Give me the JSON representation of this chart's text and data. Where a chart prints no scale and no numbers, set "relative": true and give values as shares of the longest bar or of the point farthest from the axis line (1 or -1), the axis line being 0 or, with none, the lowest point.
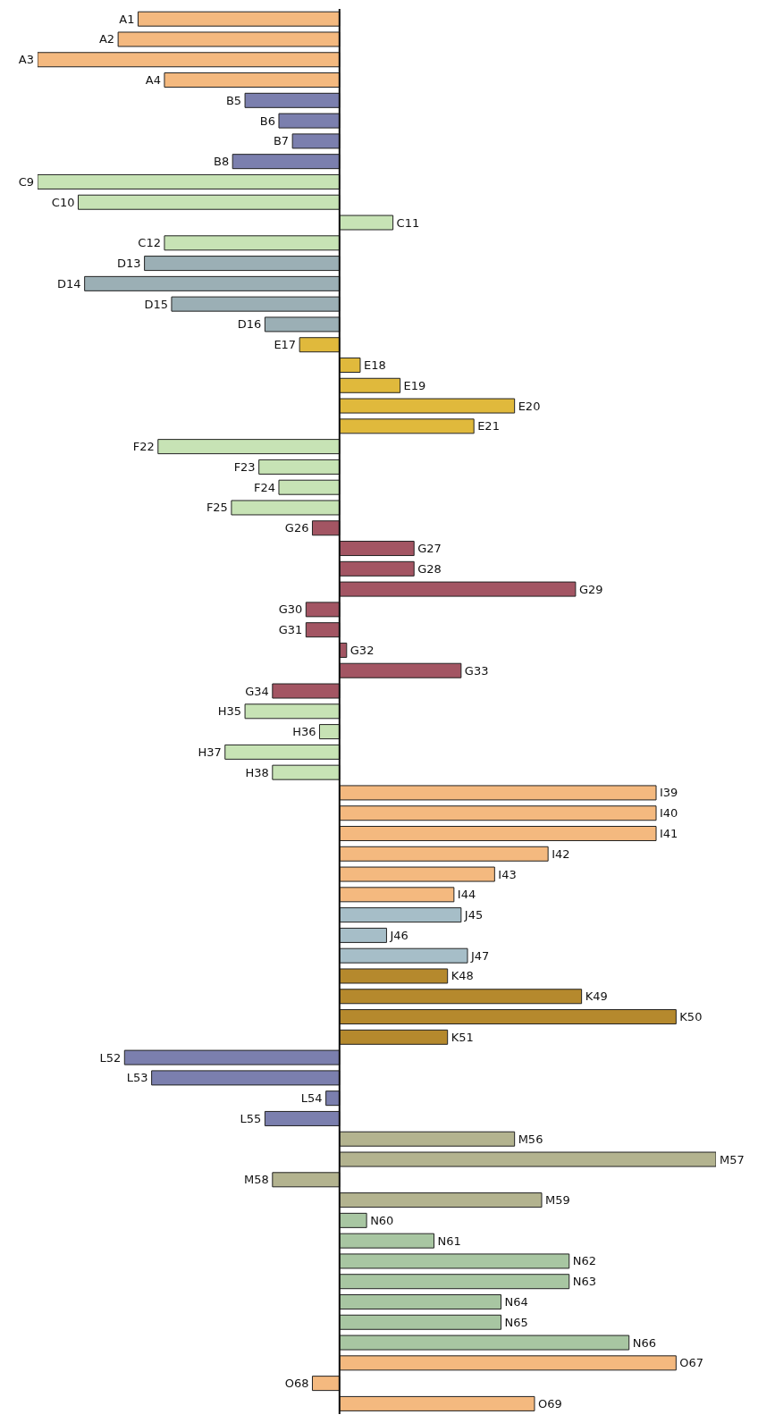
{
  "chart_data": {
    "type": "bar",
    "orientation": "horizontal",
    "relative": true,
    "categories": [
      "A1",
      "A2",
      "A3",
      "A4",
      "B5",
      "B6",
      "B7",
      "B8",
      "C9",
      "C10",
      "C11",
      "C12",
      "D13",
      "D14",
      "D15",
      "D16",
      "E17",
      "E18",
      "E19",
      "E20",
      "E21",
      "F22",
      "F23",
      "F24",
      "F25",
      "G26",
      "G27",
      "G28",
      "G29",
      "G30",
      "G31",
      "G32",
      "G33",
      "G34",
      "H35",
      "H36",
      "H37",
      "H38",
      "I39",
      "I40",
      "I41",
      "I42",
      "I43",
      "I44",
      "J45",
      "J46",
      "J47",
      "K48",
      "K49",
      "K50",
      "K51",
      "L52",
      "L53",
      "L54",
      "L55",
      "M56",
      "M57",
      "M58",
      "M59",
      "N60",
      "N61",
      "N62",
      "N63",
      "N64",
      "N65",
      "N66",
      "O67",
      "O68",
      "O69"
    ],
    "values": [
      -0.535,
      -0.588,
      -0.802,
      -0.465,
      -0.251,
      -0.161,
      -0.125,
      -0.284,
      -0.802,
      -0.694,
      0.142,
      -0.465,
      -0.518,
      -0.677,
      -0.446,
      -0.198,
      -0.106,
      0.055,
      0.161,
      0.465,
      0.357,
      -0.482,
      -0.214,
      -0.161,
      -0.287,
      -0.072,
      0.198,
      0.198,
      0.627,
      -0.089,
      -0.089,
      0.019,
      0.323,
      -0.178,
      -0.251,
      -0.053,
      -0.304,
      -0.178,
      0.841,
      0.841,
      0.841,
      0.554,
      0.412,
      0.304,
      0.323,
      0.125,
      0.34,
      0.287,
      0.643,
      0.894,
      0.287,
      -0.571,
      -0.499,
      -0.036,
      -0.198,
      0.465,
      1,
      -0.178,
      0.537,
      0.072,
      0.251,
      0.61,
      0.61,
      0.429,
      0.429,
      0.769,
      0.894,
      -0.072,
      0.518
    ],
    "colors": [
      "#f4b97f",
      "#f4b97f",
      "#f4b97f",
      "#f4b97f",
      "#7b7fae",
      "#7b7fae",
      "#7b7fae",
      "#7b7fae",
      "#c7e3b5",
      "#c7e3b5",
      "#c7e3b5",
      "#c7e3b5",
      "#9bafb5",
      "#9bafb5",
      "#9bafb5",
      "#9bafb5",
      "#e0b93c",
      "#e0b93c",
      "#e0b93c",
      "#e0b93c",
      "#e0b93c",
      "#c7e3b5",
      "#c7e3b5",
      "#c7e3b5",
      "#c7e3b5",
      "#a35563",
      "#a35563",
      "#a35563",
      "#a35563",
      "#a35563",
      "#a35563",
      "#a35563",
      "#a35563",
      "#a35563",
      "#c7e3b5",
      "#c7e3b5",
      "#c7e3b5",
      "#c7e3b5",
      "#f4b97f",
      "#f4b97f",
      "#f4b97f",
      "#f4b97f",
      "#f4b97f",
      "#f4b97f",
      "#a6bec8",
      "#a6bec8",
      "#a6bec8",
      "#b5892d",
      "#b5892d",
      "#b5892d",
      "#b5892d",
      "#7b7fae",
      "#7b7fae",
      "#7b7fae",
      "#7b7fae",
      "#b3b38f",
      "#b3b38f",
      "#b3b38f",
      "#b3b38f",
      "#a8c6a2",
      "#a8c6a2",
      "#a8c6a2",
      "#a8c6a2",
      "#a8c6a2",
      "#a8c6a2",
      "#a8c6a2",
      "#f4b97f",
      "#f4b97f",
      "#f4b97f"
    ]
  }
}
